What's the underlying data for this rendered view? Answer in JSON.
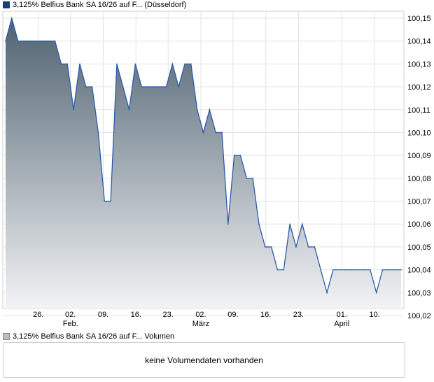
{
  "price_legend": {
    "label": "3,125% Belfius Bank SA 16/26 auf F... (Düsseldorf)",
    "swatch_color": "#1b3d7a"
  },
  "volume_legend": {
    "label": "3,125% Belfius Bank SA 16/26 auf F... Volumen",
    "swatch_color": "#bdbdbd"
  },
  "volume_message": "keine Volumendaten vorhanden",
  "chart_data": {
    "type": "area",
    "x": [
      0,
      1,
      2,
      3,
      4,
      5,
      6,
      7,
      8,
      9,
      10,
      11,
      12,
      13,
      14,
      15,
      16,
      17,
      18,
      19,
      20,
      21,
      22,
      23,
      24,
      25,
      26,
      27,
      28,
      29,
      30,
      31,
      32,
      33,
      34,
      35,
      36,
      37,
      38,
      39,
      40,
      41,
      42,
      43,
      44,
      45,
      46,
      47,
      48,
      49,
      50,
      51,
      52,
      53,
      54,
      55,
      56,
      57,
      58,
      59,
      60,
      61,
      62,
      63,
      64
    ],
    "values": [
      100.14,
      100.15,
      100.14,
      100.14,
      100.14,
      100.14,
      100.14,
      100.14,
      100.14,
      100.13,
      100.13,
      100.11,
      100.13,
      100.12,
      100.12,
      100.1,
      100.07,
      100.07,
      100.13,
      100.12,
      100.11,
      100.13,
      100.12,
      100.12,
      100.12,
      100.12,
      100.12,
      100.13,
      100.12,
      100.13,
      100.13,
      100.11,
      100.1,
      100.11,
      100.1,
      100.1,
      100.06,
      100.09,
      100.09,
      100.08,
      100.08,
      100.06,
      100.05,
      100.05,
      100.04,
      100.04,
      100.06,
      100.05,
      100.06,
      100.05,
      100.05,
      100.04,
      100.03,
      100.04,
      100.04,
      100.04,
      100.04,
      100.04,
      100.04,
      100.04,
      100.03,
      100.04,
      100.04,
      100.04,
      100.04
    ],
    "y_ticks": [
      "100,02",
      "100,03",
      "100,04",
      "100,05",
      "100,06",
      "100,07",
      "100,08",
      "100,09",
      "100,10",
      "100,11",
      "100,12",
      "100,13",
      "100,14",
      "100,15"
    ],
    "ylim": [
      100.02,
      100.15
    ],
    "x_ticks": [
      {
        "label": "26.",
        "x": 5.3
      },
      {
        "label": "02.",
        "x": 10.5
      },
      {
        "label": "09.",
        "x": 15.8
      },
      {
        "label": "16.",
        "x": 21.1
      },
      {
        "label": "23.",
        "x": 26.3
      },
      {
        "label": "02.",
        "x": 31.6
      },
      {
        "label": "09.",
        "x": 36.8
      },
      {
        "label": "16.",
        "x": 42.1
      },
      {
        "label": "23.",
        "x": 47.4
      },
      {
        "label": "01.",
        "x": 54.4
      },
      {
        "label": "10.",
        "x": 59.7
      }
    ],
    "month_labels": [
      {
        "label": "Feb.",
        "x": 10.5
      },
      {
        "label": "März",
        "x": 31.6
      },
      {
        "label": "April",
        "x": 54.4
      }
    ],
    "grid": true,
    "line_color": "#2e5aa8",
    "fill_top_color": "#4f6270",
    "fill_bottom_color": "#f2f3f5"
  }
}
